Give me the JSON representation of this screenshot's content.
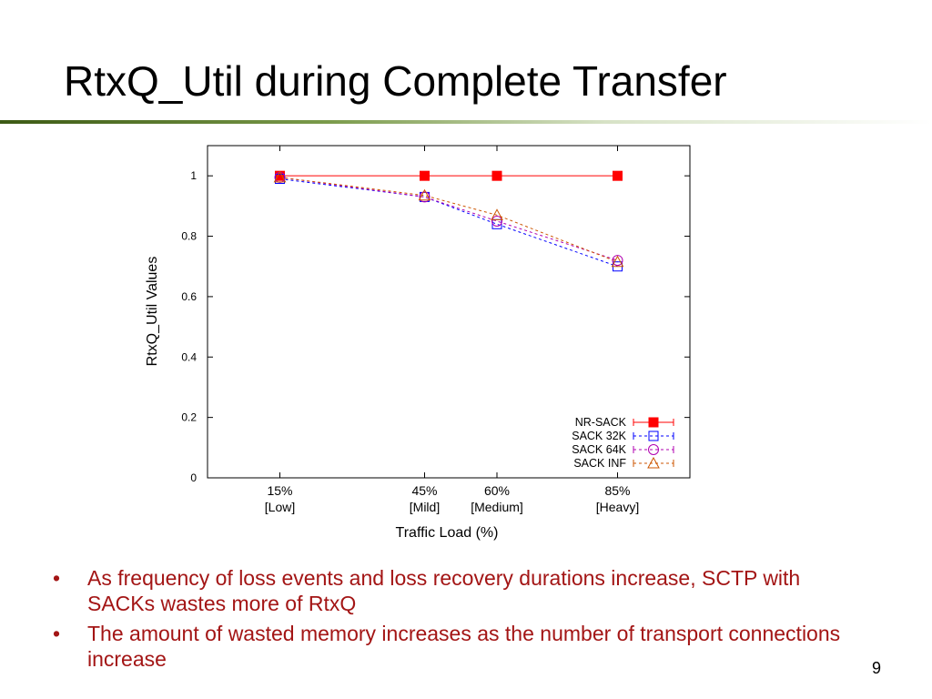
{
  "slide": {
    "title": "RtxQ_Util during Complete Transfer",
    "bullets": [
      "As frequency of loss events and loss recovery durations increase, SCTP with SACKs wastes more of RtxQ",
      "The amount of wasted memory increases as the number of transport connections increase"
    ],
    "page_number": "9",
    "bullet_symbol": "•"
  },
  "chart_data": {
    "type": "line",
    "xlabel": "Traffic Load (%)",
    "ylabel": "RtxQ_Util Values",
    "x": [
      15,
      45,
      60,
      85
    ],
    "xlim": [
      0,
      100
    ],
    "x_tick_labels": [
      "15%",
      "45%",
      "60%",
      "85%"
    ],
    "x_tick_sublabels": [
      "[Low]",
      "[Mild]",
      "[Medium]",
      "[Heavy]"
    ],
    "ylim": [
      0,
      1.1
    ],
    "y_ticks": [
      0,
      0.2,
      0.4,
      0.6,
      0.8,
      1
    ],
    "y_tick_labels": [
      "0",
      "0.2",
      "0.4",
      "0.6",
      "0.8",
      "1"
    ],
    "grid": false,
    "legend_position": "bottom-right",
    "series": [
      {
        "name": "NR-SACK",
        "values": [
          1.0,
          1.0,
          1.0,
          1.0
        ],
        "color": "#ff0000",
        "marker": "filled-square",
        "dash": "solid"
      },
      {
        "name": "SACK 32K",
        "values": [
          0.99,
          0.93,
          0.84,
          0.7
        ],
        "color": "#0000ff",
        "marker": "open-square",
        "dash": "dashed"
      },
      {
        "name": "SACK 64K",
        "values": [
          0.995,
          0.93,
          0.85,
          0.72
        ],
        "color": "#b000b0",
        "marker": "open-circle",
        "dash": "dashed"
      },
      {
        "name": "SACK INF",
        "values": [
          0.995,
          0.935,
          0.87,
          0.715
        ],
        "color": "#cc5500",
        "marker": "open-triangle",
        "dash": "dashed"
      }
    ]
  }
}
